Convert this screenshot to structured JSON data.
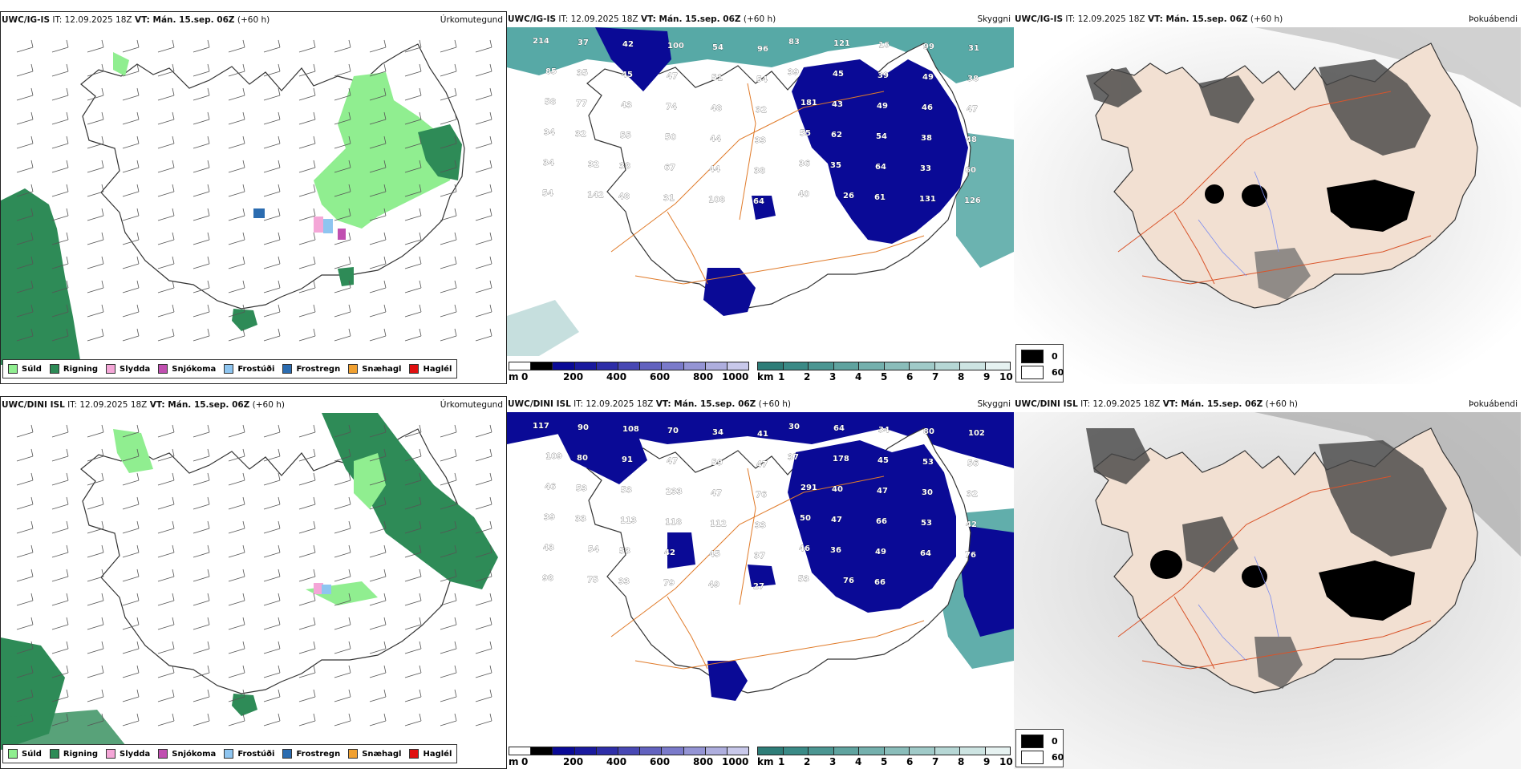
{
  "colors": {
    "sea_green": "#2e8b57",
    "light_green": "#90ee90",
    "deep_blue": "#0a0a96",
    "teal": "#3a9a96",
    "road": "#e07b2a",
    "fog_dark": "#111111",
    "land_beige": "#f2e0d2"
  },
  "rows": [
    {
      "model": "UWC/IG-IS",
      "it": "IT: 12.09.2025 18Z",
      "vt": "VT: Mán. 15.sep. 06Z",
      "lead": "(+60 h)",
      "precip_title": "Úrkomutegund",
      "cloud_title": "Skyggni",
      "fog_title": "Þokuábendi",
      "cloud_numbers": [
        "214",
        "37",
        "42",
        "100",
        "54",
        "96",
        "83",
        "121",
        "16",
        "99",
        "31",
        "85",
        "35",
        "45",
        "47",
        "51",
        "54",
        "39",
        "45",
        "39",
        "49",
        "38",
        "58",
        "77",
        "43",
        "74",
        "48",
        "32",
        "181",
        "43",
        "49",
        "46",
        "47",
        "34",
        "32",
        "55",
        "50",
        "44",
        "33",
        "55",
        "62",
        "54",
        "38",
        "48",
        "34",
        "32",
        "38",
        "67",
        "44",
        "38",
        "36",
        "35",
        "64",
        "33",
        "60",
        "54",
        "142",
        "48",
        "31",
        "108",
        "64",
        "40",
        "26",
        "61",
        "131",
        "126"
      ]
    },
    {
      "model": "UWC/DINI ISL",
      "it": "IT: 12.09.2025 18Z",
      "vt": "VT: Mán. 15.sep. 06Z",
      "lead": "(+60 h)",
      "precip_title": "Úrkomutegund",
      "cloud_title": "Skyggni",
      "fog_title": "Þokuábendi",
      "cloud_numbers": [
        "117",
        "90",
        "108",
        "70",
        "34",
        "41",
        "30",
        "64",
        "34",
        "80",
        "102",
        "109",
        "80",
        "91",
        "47",
        "59",
        "47",
        "37",
        "178",
        "45",
        "53",
        "56",
        "46",
        "53",
        "53",
        "233",
        "47",
        "76",
        "291",
        "40",
        "47",
        "30",
        "32",
        "39",
        "33",
        "113",
        "118",
        "112",
        "33",
        "50",
        "47",
        "66",
        "53",
        "42",
        "43",
        "54",
        "53",
        "42",
        "45",
        "37",
        "46",
        "36",
        "49",
        "64",
        "76",
        "98",
        "75",
        "33",
        "79",
        "49",
        "27",
        "53",
        "76",
        "66"
      ]
    }
  ],
  "precip_legend": [
    {
      "label": "Súld",
      "color": "#90ee90"
    },
    {
      "label": "Rigning",
      "color": "#2e8b57"
    },
    {
      "label": "Slydda",
      "color": "#f4a6d7"
    },
    {
      "label": "Snjókoma",
      "color": "#c04fb0"
    },
    {
      "label": "Frostúði",
      "color": "#8ec5f0"
    },
    {
      "label": "Frostregn",
      "color": "#2b6cb0"
    },
    {
      "label": "Snæhagl",
      "color": "#f0a030"
    },
    {
      "label": "Haglél",
      "color": "#e01010"
    }
  ],
  "cloud_base": {
    "unit": "m",
    "labels": [
      "0",
      "200",
      "400",
      "600",
      "800",
      "1000"
    ],
    "colors": [
      "#ffffff",
      "#000000",
      "#0a0a96",
      "#1a1a9e",
      "#2e2ea8",
      "#4848b4",
      "#6262bf",
      "#7a7aca",
      "#9494d4",
      "#aeaede",
      "#c8c8ea"
    ]
  },
  "visibility": {
    "unit": "km",
    "labels": [
      "1",
      "2",
      "3",
      "4",
      "5",
      "6",
      "7",
      "8",
      "9",
      "10"
    ],
    "colors": [
      "#2e7d78",
      "#3a8a86",
      "#4b9692",
      "#5fa39f",
      "#74b0ad",
      "#8abdba",
      "#a0cac8",
      "#b6d7d5",
      "#cde4e2",
      "#e6f2f1"
    ]
  },
  "fog_legend": [
    {
      "label": "0",
      "color": "#000000"
    },
    {
      "label": "60",
      "color": "#ffffff"
    }
  ]
}
